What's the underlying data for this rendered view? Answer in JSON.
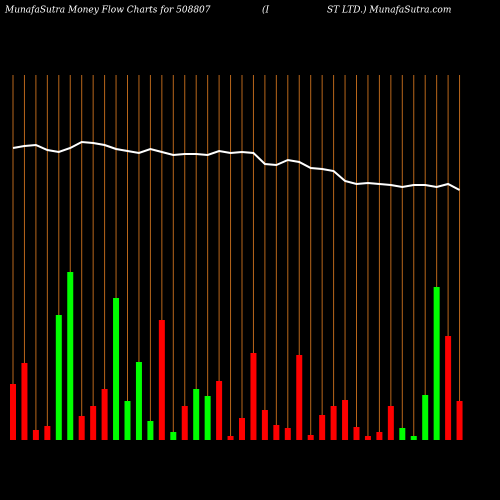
{
  "chart_data": {
    "type": "bar",
    "title": "MunafaSutra  Money Flow  Charts for 508807",
    "subtitle": "(I",
    "subtitle2": "ST LTD.) MunafaSutra.com",
    "categories": [
      null,
      null,
      null,
      null,
      null,
      null,
      null,
      null,
      null,
      null,
      null,
      null,
      null,
      null,
      null,
      null,
      null,
      null,
      null,
      null,
      null,
      null,
      null,
      null,
      null,
      null,
      null,
      null,
      null,
      null,
      null,
      null,
      null,
      null,
      null,
      null,
      null,
      null,
      null,
      null
    ],
    "values": [
      56,
      77,
      10,
      14,
      125,
      168,
      24,
      34,
      51,
      142,
      39,
      78,
      19,
      120,
      8,
      34,
      51,
      44,
      59,
      4,
      22,
      87,
      30,
      15,
      12,
      85,
      5,
      25,
      34,
      40,
      13,
      4,
      8,
      34,
      12,
      4,
      45,
      153,
      104,
      39
    ],
    "colors": [
      "#ff0000",
      "#ff0000",
      "#ff0000",
      "#ff0000",
      "#00ff00",
      "#00ff00",
      "#ff0000",
      "#ff0000",
      "#ff0000",
      "#00ff00",
      "#00ff00",
      "#00ff00",
      "#00ff00",
      "#ff0000",
      "#00ff00",
      "#ff0000",
      "#00ff00",
      "#00ff00",
      "#ff0000",
      "#ff0000",
      "#ff0000",
      "#ff0000",
      "#ff0000",
      "#ff0000",
      "#ff0000",
      "#ff0000",
      "#ff0000",
      "#ff0000",
      "#ff0000",
      "#ff0000",
      "#ff0000",
      "#ff0000",
      "#ff0000",
      "#ff0000",
      "#00ff00",
      "#00ff00",
      "#00ff00",
      "#00ff00",
      "#ff0000",
      "#ff0000"
    ],
    "line": {
      "color": "#ffffff",
      "values": [
        292,
        294,
        295,
        290,
        288,
        292,
        298,
        297,
        295,
        291,
        289,
        287,
        291,
        288,
        285,
        286,
        286,
        285,
        289,
        287,
        288,
        287,
        276,
        275,
        280,
        278,
        272,
        271,
        269,
        259,
        256,
        257,
        256,
        255,
        253,
        255,
        255,
        253,
        256,
        250
      ]
    },
    "ylim": [
      0,
      440
    ],
    "gridline_color": "#b8661b"
  }
}
